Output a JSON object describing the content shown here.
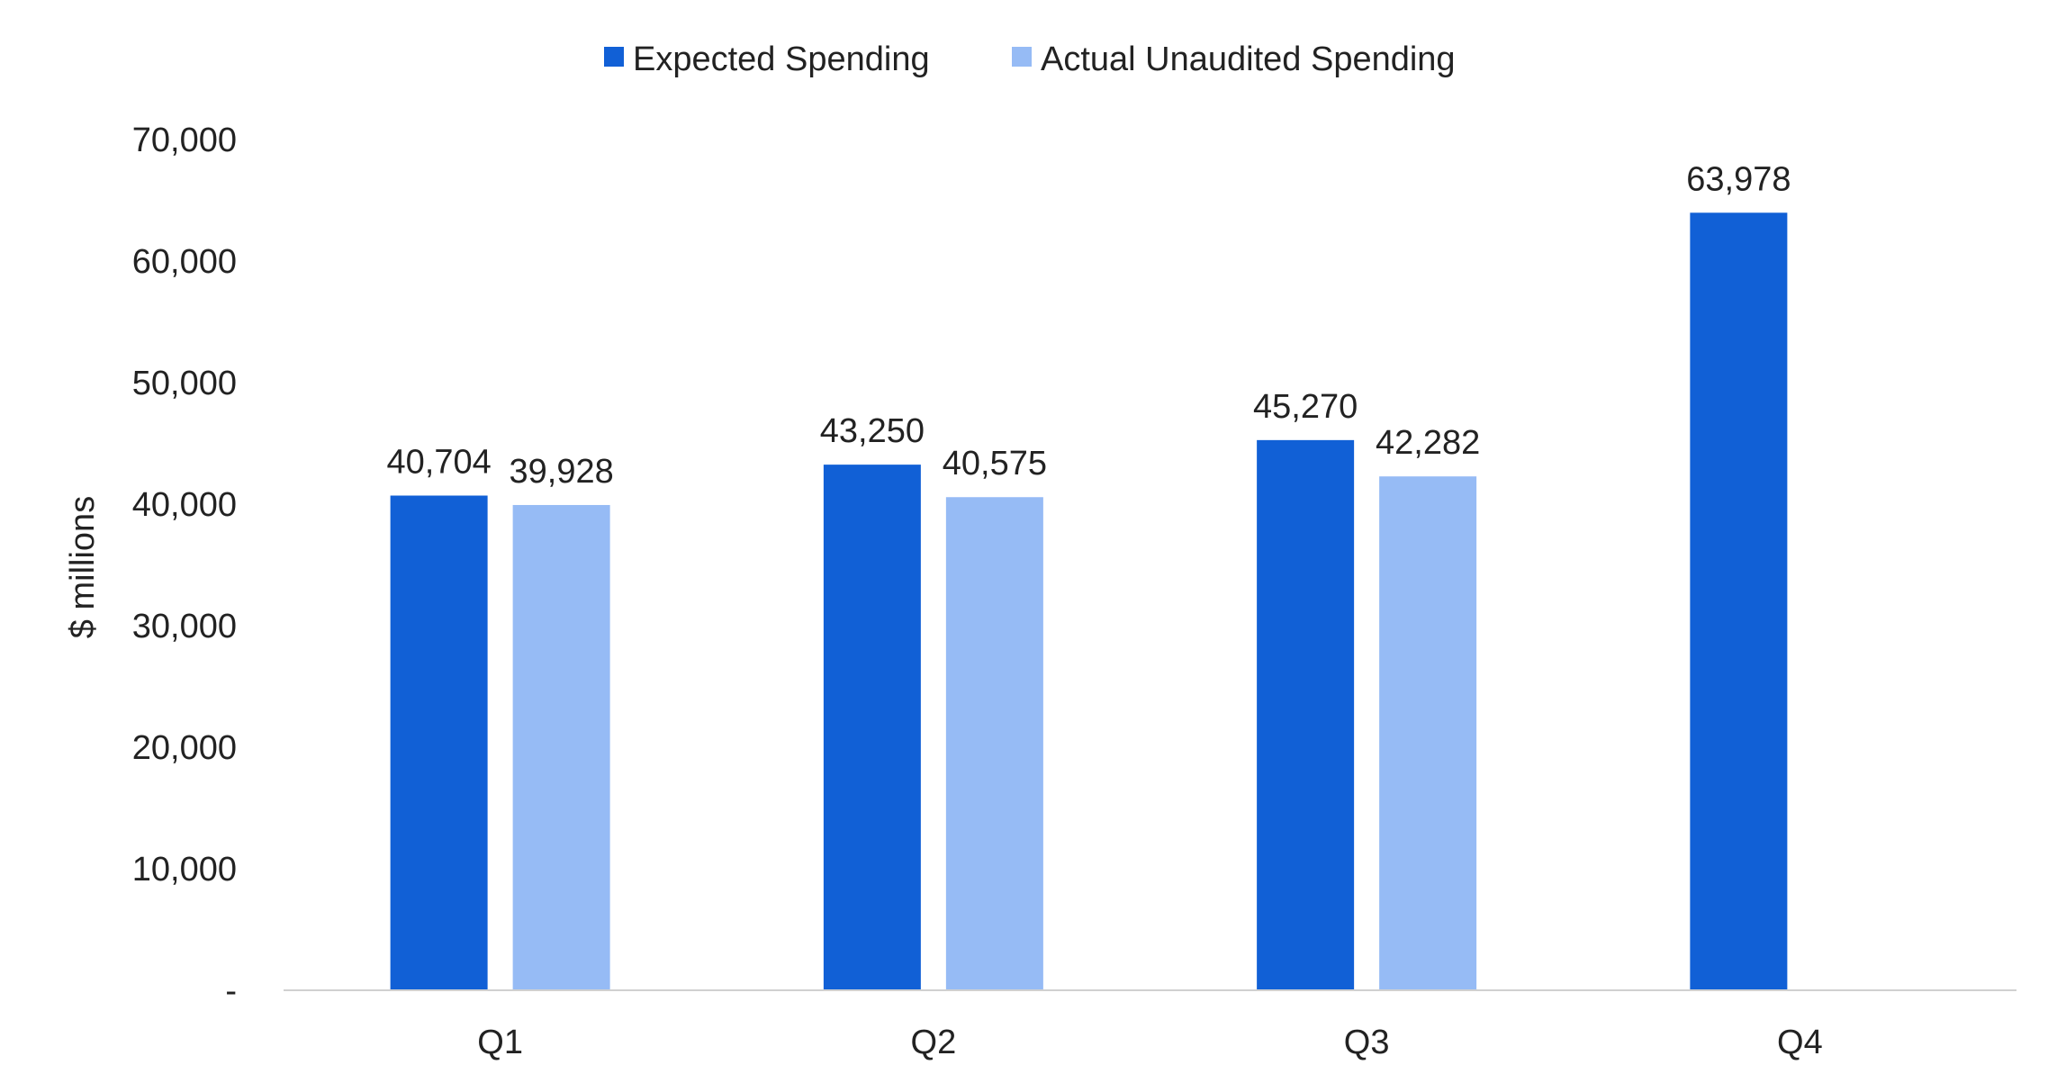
{
  "chart_data": {
    "type": "bar",
    "categories": [
      "Q1",
      "Q2",
      "Q3",
      "Q4"
    ],
    "series": [
      {
        "name": "Expected Spending",
        "values": [
          40704,
          43250,
          45270,
          63978
        ],
        "labels": [
          "40,704",
          "43,250",
          "45,270",
          "63,978"
        ],
        "color": "#1160d6"
      },
      {
        "name": "Actual Unaudited Spending",
        "values": [
          39928,
          40575,
          42282,
          null
        ],
        "labels": [
          "39,928",
          "40,575",
          "42,282",
          ""
        ],
        "color": "#96bbf5"
      }
    ],
    "ylabel": "$ millions",
    "ylim": [
      0,
      70000
    ],
    "yticks": [
      0,
      10000,
      20000,
      30000,
      40000,
      50000,
      60000,
      70000
    ],
    "yticklabels": [
      "-",
      "10,000",
      "20,000",
      "30,000",
      "40,000",
      "50,000",
      "60,000",
      "70,000"
    ],
    "grid": false,
    "legend_position": "top-center",
    "axis_color": "#d0d0d0"
  }
}
